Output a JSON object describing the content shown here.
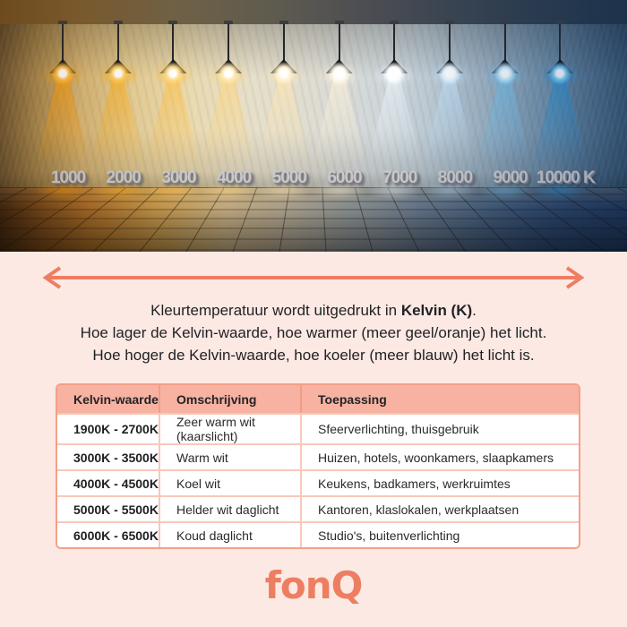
{
  "colors": {
    "background_pink": "#fce9e3",
    "accent_salmon": "#ed7e62",
    "table_header_bg": "#f8b2a1",
    "table_border": "#f2a089",
    "table_divider": "#f8c8ba"
  },
  "hero": {
    "kelvin_scale": [
      {
        "label": "1000",
        "light_color": "#ff9d00",
        "bulb_color": "#ffc24d"
      },
      {
        "label": "2000",
        "light_color": "#ffb11c",
        "bulb_color": "#ffd065"
      },
      {
        "label": "3000",
        "light_color": "#ffc247",
        "bulb_color": "#ffdf8e"
      },
      {
        "label": "4000",
        "light_color": "#ffd67c",
        "bulb_color": "#ffeab4"
      },
      {
        "label": "5000",
        "light_color": "#ffe6ad",
        "bulb_color": "#fff3d4"
      },
      {
        "label": "6000",
        "light_color": "#fff3d9",
        "bulb_color": "#fffbef"
      },
      {
        "label": "7000",
        "light_color": "#eef7ff",
        "bulb_color": "#ffffff"
      },
      {
        "label": "8000",
        "light_color": "#c6e7fd",
        "bulb_color": "#eaf7ff"
      },
      {
        "label": "9000",
        "light_color": "#74c7f2",
        "bulb_color": "#c4e8fb"
      },
      {
        "label": "10000 K",
        "light_color": "#259ade",
        "bulb_color": "#7fd0f5"
      }
    ]
  },
  "intro": {
    "line1_prefix": "Kleurtemperatuur wordt uitgedrukt in ",
    "line1_bold": "Kelvin (K)",
    "line1_suffix": ".",
    "line2": "Hoe lager de Kelvin-waarde, hoe warmer (meer geel/oranje) het licht.",
    "line3": "Hoe hoger de Kelvin-waarde, hoe koeler (meer blauw) het licht is."
  },
  "table": {
    "headers": [
      "Kelvin-waarde",
      "Omschrijving",
      "Toepassing"
    ],
    "rows": [
      [
        "1900K - 2700K",
        "Zeer warm wit (kaarslicht)",
        "Sfeerverlichting, thuisgebruik"
      ],
      [
        "3000K - 3500K",
        "Warm wit",
        "Huizen, hotels, woonkamers, slaapkamers"
      ],
      [
        "4000K - 4500K",
        "Koel wit",
        "Keukens, badkamers, werkruimtes"
      ],
      [
        "5000K - 5500K",
        "Helder wit daglicht",
        "Kantoren, klaslokalen, werkplaatsen"
      ],
      [
        "6000K - 6500K",
        "Koud daglicht",
        "Studio's, buitenverlichting"
      ]
    ]
  },
  "footer": {
    "logo_text": "fonQ"
  }
}
